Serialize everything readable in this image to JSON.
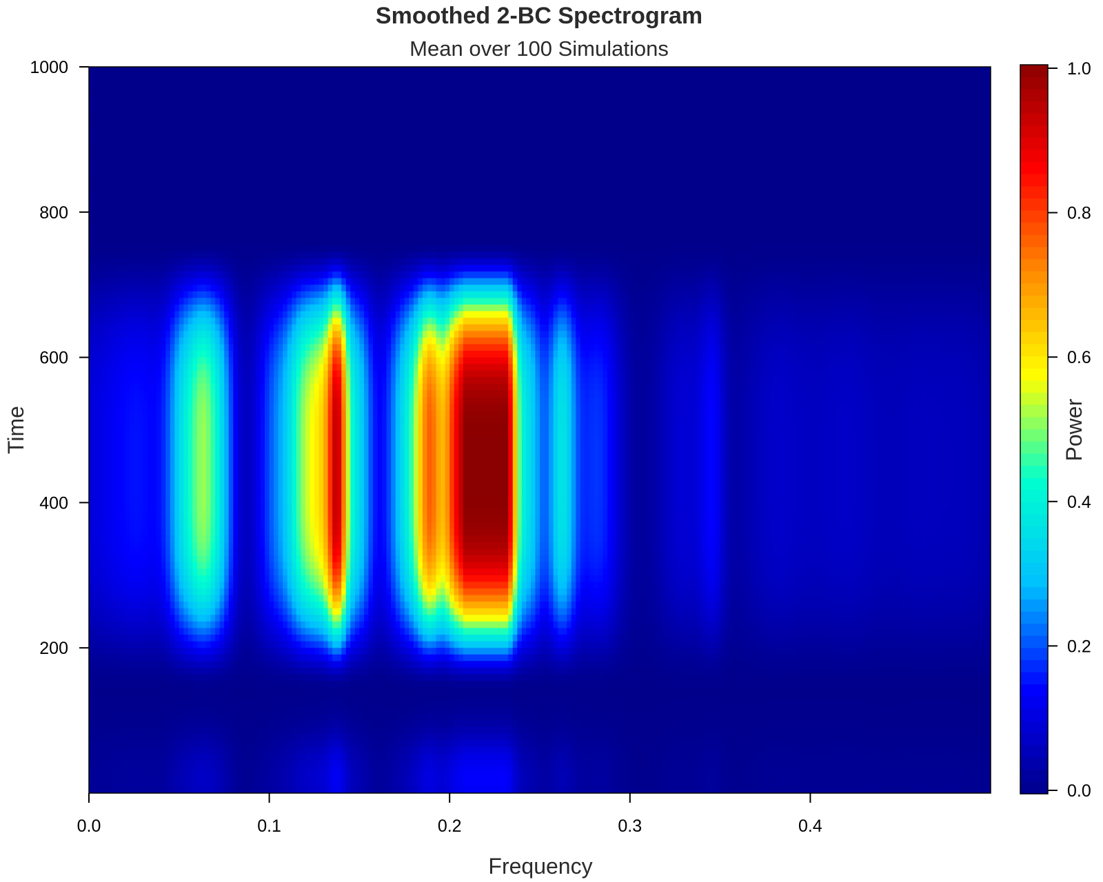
{
  "chart_data": {
    "type": "heatmap",
    "title": "Smoothed 2-BC Spectrogram",
    "subtitle": "Mean over 100 Simulations",
    "xlabel": "Frequency",
    "ylabel": "Time",
    "xlim": [
      0,
      0.5
    ],
    "ylim": [
      0,
      1000
    ],
    "x_ticks": [
      "0.0",
      "0.1",
      "0.2",
      "0.3",
      "0.4"
    ],
    "x_tick_values": [
      0.0,
      0.1,
      0.2,
      0.3,
      0.4
    ],
    "y_ticks": [
      "200",
      "400",
      "600",
      "800",
      "1000"
    ],
    "y_tick_values": [
      200,
      400,
      600,
      800,
      1000
    ],
    "colorbar": {
      "label": "Power",
      "range": [
        0,
        1
      ],
      "ticks": [
        "0.0",
        "0.2",
        "0.4",
        "0.6",
        "0.8",
        "1.0"
      ],
      "tick_values": [
        0.0,
        0.2,
        0.4,
        0.6,
        0.8,
        1.0
      ],
      "colormap": [
        "#00008b",
        "#0000ff",
        "#00bfff",
        "#00ffd0",
        "#ffff00",
        "#ff8c00",
        "#ff0000",
        "#8b0000"
      ]
    },
    "time_profile": {
      "center": 450,
      "half_width": 310,
      "shape": "smooth bump centred near time 450, plus a faint band near time 0"
    },
    "frequency_components": [
      {
        "freq": 0.0,
        "width": 0.018,
        "peak_power": 0.08
      },
      {
        "freq": 0.03,
        "width": 0.015,
        "peak_power": 0.13
      },
      {
        "freq": 0.053,
        "width": 0.007,
        "peak_power": 0.28
      },
      {
        "freq": 0.064,
        "width": 0.006,
        "peak_power": 0.36
      },
      {
        "freq": 0.074,
        "width": 0.006,
        "peak_power": 0.24
      },
      {
        "freq": 0.105,
        "width": 0.01,
        "peak_power": 0.22
      },
      {
        "freq": 0.12,
        "width": 0.007,
        "peak_power": 0.38
      },
      {
        "freq": 0.138,
        "width": 0.004,
        "peak_power": 0.58
      },
      {
        "freq": 0.131,
        "width": 0.006,
        "peak_power": 0.42
      },
      {
        "freq": 0.148,
        "width": 0.007,
        "peak_power": 0.34
      },
      {
        "freq": 0.178,
        "width": 0.01,
        "peak_power": 0.36
      },
      {
        "freq": 0.19,
        "width": 0.006,
        "peak_power": 0.56
      },
      {
        "freq": 0.203,
        "width": 0.005,
        "peak_power": 0.66
      },
      {
        "freq": 0.213,
        "width": 0.005,
        "peak_power": 0.93
      },
      {
        "freq": 0.222,
        "width": 0.005,
        "peak_power": 1.0
      },
      {
        "freq": 0.231,
        "width": 0.005,
        "peak_power": 0.86
      },
      {
        "freq": 0.244,
        "width": 0.006,
        "peak_power": 0.32
      },
      {
        "freq": 0.262,
        "width": 0.006,
        "peak_power": 0.34
      },
      {
        "freq": 0.282,
        "width": 0.01,
        "peak_power": 0.18
      },
      {
        "freq": 0.33,
        "width": 0.012,
        "peak_power": 0.09
      },
      {
        "freq": 0.346,
        "width": 0.005,
        "peak_power": 0.1
      },
      {
        "freq": 0.38,
        "width": 0.015,
        "peak_power": 0.07
      },
      {
        "freq": 0.42,
        "width": 0.018,
        "peak_power": 0.07
      },
      {
        "freq": 0.46,
        "width": 0.015,
        "peak_power": 0.05
      },
      {
        "freq": 0.49,
        "width": 0.015,
        "peak_power": 0.05
      }
    ]
  }
}
